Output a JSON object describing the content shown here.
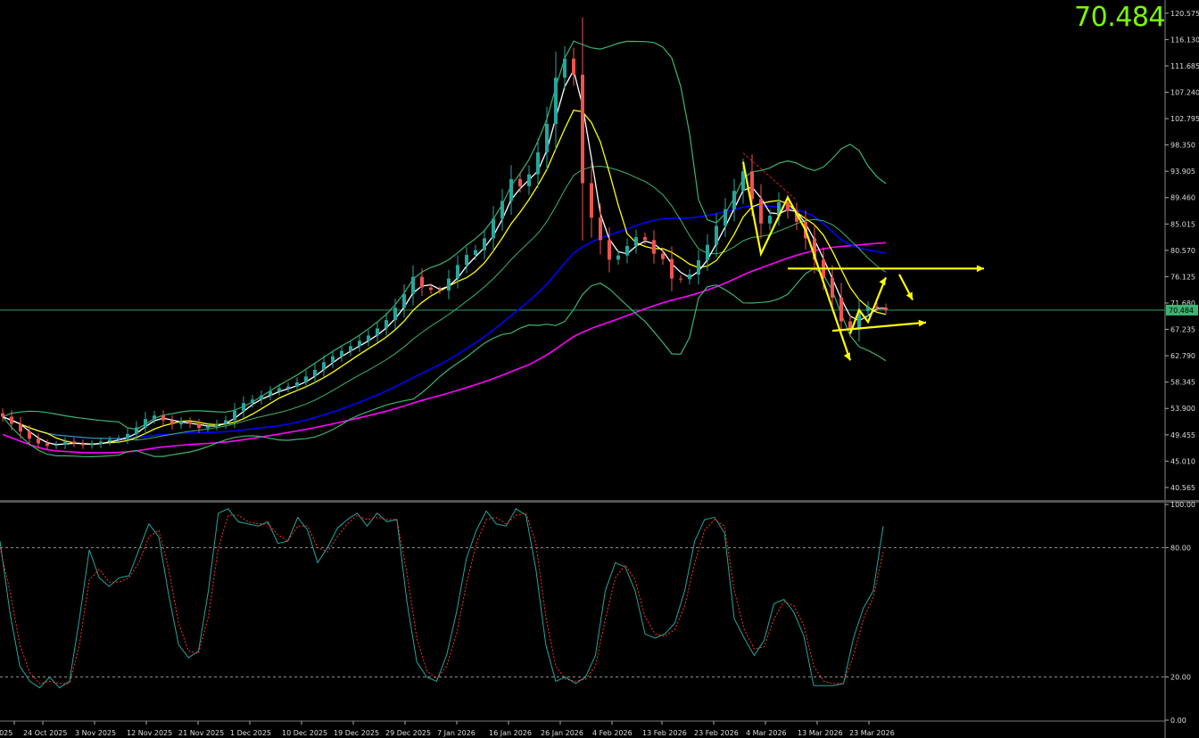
{
  "current_price": "70.484",
  "chart_data": [
    {
      "type": "line",
      "description_series": [
        "price candles",
        "bollinger bands",
        "moving averages"
      ],
      "y_ticks": [
        "120.575",
        "116.130",
        "111.685",
        "107.240",
        "102.795",
        "98.350",
        "93.905",
        "89.460",
        "85.015",
        "80.570",
        "76.125",
        "71.680",
        "67.235",
        "62.790",
        "58.345",
        "53.900",
        "49.455",
        "45.010",
        "40.565"
      ],
      "ylim": [
        38.6,
        122.5
      ],
      "price_line": 70.484,
      "price_tag": "70.484",
      "x_ticks": [
        "2025",
        "24 Oct 2025",
        "3 Nov 2025",
        "12 Nov 2025",
        "21 Nov 2025",
        "1 Dec 2025",
        "10 Dec 2025",
        "19 Dec 2025",
        "29 Dec 2025",
        "7 Jan 2026",
        "16 Jan 2026",
        "26 Jan 2026",
        "4 Feb 2026",
        "13 Feb 2026",
        "23 Feb 2026",
        "4 Mar 2026",
        "13 Mar 2026",
        "23 Mar 2026"
      ],
      "close": [
        52.5,
        51.3,
        50.0,
        48.8,
        48.0,
        47.6,
        47.8,
        48.3,
        48.0,
        47.7,
        47.9,
        48.3,
        48.6,
        48.8,
        49.6,
        50.7,
        52.1,
        52.7,
        51.9,
        51.2,
        51.7,
        51.3,
        50.6,
        50.9,
        51.3,
        51.9,
        53.5,
        54.8,
        55.4,
        56.1,
        56.8,
        57.3,
        57.6,
        58.3,
        59.3,
        60.4,
        61.7,
        62.7,
        63.6,
        64.4,
        65.3,
        66.2,
        67.4,
        68.8,
        70.9,
        73.2,
        76.1,
        74.3,
        73.9,
        73.8,
        75.8,
        78.1,
        79.8,
        80.6,
        82.6,
        85.9,
        88.9,
        92.6,
        91.4,
        93.4,
        97.1,
        101.9,
        109.7,
        112.9,
        110.2,
        91.9,
        86.1,
        82.3,
        79.0,
        79.7,
        81.3,
        82.8,
        82.3,
        80.0,
        79.1,
        75.8,
        75.7,
        76.5,
        78.9,
        81.5,
        84.7,
        87.5,
        90.6,
        93.9,
        89.2,
        85.1,
        86.4,
        88.7,
        87.2,
        85.4,
        82.6,
        79.0,
        75.9,
        72.6,
        68.6,
        67.2,
        70.3,
        71.1,
        70.9,
        70.5
      ],
      "overlays": [
        {
          "name": "bb_upper",
          "color": "#3CB371"
        },
        {
          "name": "bb_lower",
          "color": "#3CB371"
        },
        {
          "name": "ma_fast",
          "color": "#FFFFFF"
        },
        {
          "name": "ma_mid",
          "color": "#FFFF00"
        },
        {
          "name": "ma_slow",
          "color": "#0000FF"
        },
        {
          "name": "ma_long",
          "color": "#FF00FF"
        }
      ],
      "up_color": "#26A69A",
      "down_color": "#EF5350"
    },
    {
      "type": "line",
      "y_ticks": [
        "100.00",
        "80.00",
        "20.00",
        "0.00"
      ],
      "ylim": [
        0,
        100
      ],
      "levels": [
        80,
        20
      ],
      "series": [
        {
          "name": "main",
          "color": "#26A69A",
          "values": [
            83,
            50,
            25,
            18,
            15,
            20,
            15,
            18,
            47,
            79,
            66,
            62,
            66,
            67,
            79,
            91,
            85,
            58,
            35,
            29,
            32,
            60,
            96,
            98,
            92,
            91,
            90,
            92,
            82,
            83,
            94,
            88,
            73,
            80,
            89,
            93,
            96,
            90,
            96,
            92,
            93,
            55,
            27,
            20,
            18,
            30,
            50,
            75,
            88,
            97,
            91,
            90,
            98,
            95,
            70,
            35,
            18,
            20,
            17,
            20,
            30,
            60,
            73,
            71,
            60,
            40,
            38,
            40,
            45,
            60,
            83,
            93,
            94,
            87,
            47,
            38,
            30,
            37,
            54,
            56,
            50,
            39,
            16,
            16,
            16,
            17,
            38,
            52,
            60,
            90
          ]
        },
        {
          "name": "signal",
          "color": "#FF3030",
          "values": [
            80,
            60,
            35,
            22,
            17,
            18,
            17,
            17,
            35,
            65,
            70,
            64,
            64,
            66,
            73,
            85,
            88,
            70,
            45,
            32,
            31,
            48,
            80,
            95,
            95,
            92,
            91,
            91,
            86,
            83,
            90,
            90,
            80,
            78,
            85,
            91,
            95,
            93,
            94,
            93,
            93,
            68,
            38,
            23,
            19,
            25,
            40,
            63,
            82,
            93,
            94,
            91,
            95,
            96,
            82,
            48,
            25,
            19,
            18,
            19,
            25,
            47,
            66,
            72,
            65,
            48,
            40,
            39,
            42,
            53,
            73,
            88,
            93,
            90,
            60,
            42,
            33,
            34,
            47,
            55,
            53,
            44,
            25,
            18,
            17,
            17,
            30,
            47,
            57,
            78
          ]
        }
      ]
    }
  ]
}
